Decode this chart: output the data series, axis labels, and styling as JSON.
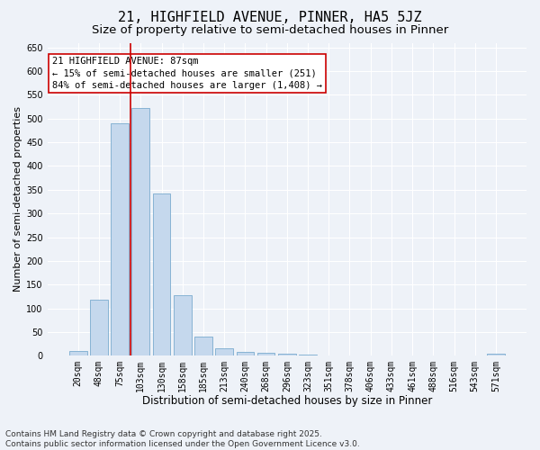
{
  "title_line1": "21, HIGHFIELD AVENUE, PINNER, HA5 5JZ",
  "title_line2": "Size of property relative to semi-detached houses in Pinner",
  "xlabel": "Distribution of semi-detached houses by size in Pinner",
  "ylabel": "Number of semi-detached properties",
  "categories": [
    "20sqm",
    "48sqm",
    "75sqm",
    "103sqm",
    "130sqm",
    "158sqm",
    "185sqm",
    "213sqm",
    "240sqm",
    "268sqm",
    "296sqm",
    "323sqm",
    "351sqm",
    "378sqm",
    "406sqm",
    "433sqm",
    "461sqm",
    "488sqm",
    "516sqm",
    "543sqm",
    "571sqm"
  ],
  "values": [
    10,
    118,
    490,
    522,
    343,
    127,
    40,
    16,
    8,
    7,
    5,
    2,
    1,
    1,
    1,
    0,
    0,
    0,
    0,
    0,
    4
  ],
  "bar_color": "#c5d8ed",
  "bar_edge_color": "#7aabcf",
  "vline_color": "#cc0000",
  "vline_x_idx": 2,
  "annotation_title": "21 HIGHFIELD AVENUE: 87sqm",
  "annotation_line1": "← 15% of semi-detached houses are smaller (251)",
  "annotation_line2": "84% of semi-detached houses are larger (1,408) →",
  "annotation_box_color": "#ffffff",
  "annotation_box_edge": "#cc0000",
  "ylim": [
    0,
    660
  ],
  "yticks": [
    0,
    50,
    100,
    150,
    200,
    250,
    300,
    350,
    400,
    450,
    500,
    550,
    600,
    650
  ],
  "footnote1": "Contains HM Land Registry data © Crown copyright and database right 2025.",
  "footnote2": "Contains public sector information licensed under the Open Government Licence v3.0.",
  "bg_color": "#eef2f8",
  "plot_bg_color": "#eef2f8",
  "grid_color": "#ffffff",
  "title_fontsize": 11,
  "subtitle_fontsize": 9.5,
  "xlabel_fontsize": 8.5,
  "ylabel_fontsize": 8,
  "tick_fontsize": 7,
  "annot_fontsize": 7.5,
  "footnote_fontsize": 6.5
}
